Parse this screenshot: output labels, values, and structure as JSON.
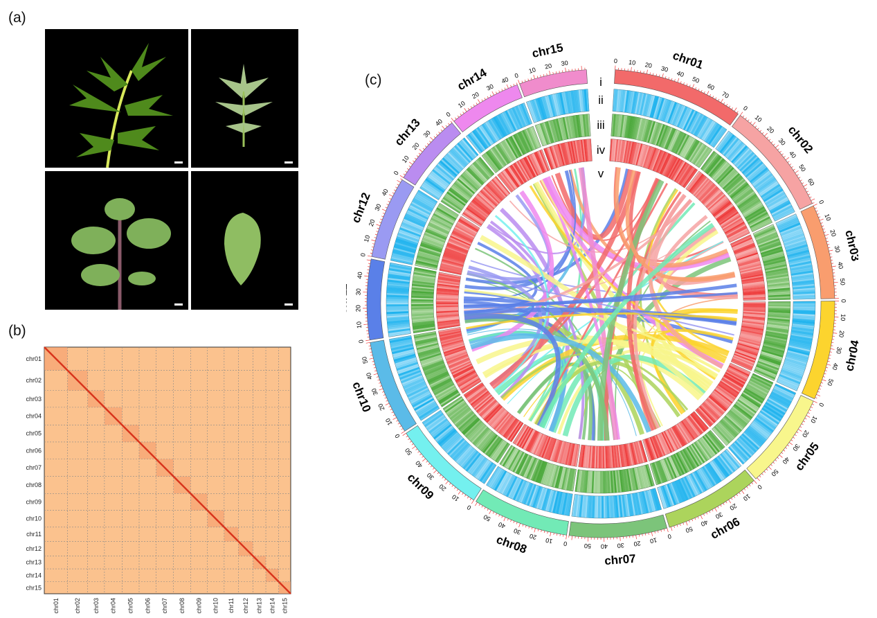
{
  "panels": {
    "a": "(a)",
    "b": "(b)",
    "c": "(c)"
  },
  "ring_labels": [
    "i",
    "ii",
    "iii",
    "iv",
    "v"
  ],
  "chromosomes": [
    {
      "name": "chr01",
      "length": 83,
      "color": "#f26a6a"
    },
    {
      "name": "chr02",
      "length": 72,
      "color": "#f6a3a3"
    },
    {
      "name": "chr03",
      "length": 60,
      "color": "#f99d6e"
    },
    {
      "name": "chr04",
      "length": 63,
      "color": "#fcd42e"
    },
    {
      "name": "chr05",
      "length": 61,
      "color": "#f8f68c"
    },
    {
      "name": "chr06",
      "length": 61,
      "color": "#acd45c"
    },
    {
      "name": "chr07",
      "length": 62,
      "color": "#7cc47a"
    },
    {
      "name": "chr08",
      "length": 61,
      "color": "#72eab6"
    },
    {
      "name": "chr09",
      "length": 60,
      "color": "#74f0ef"
    },
    {
      "name": "chr10",
      "length": 60,
      "color": "#5bbbe8"
    },
    {
      "name": "chr11",
      "length": 51,
      "color": "#5a80e8"
    },
    {
      "name": "chr12",
      "length": 52,
      "color": "#9a9af2"
    },
    {
      "name": "chr13",
      "length": 46,
      "color": "#ba8cf0"
    },
    {
      "name": "chr14",
      "length": 46,
      "color": "#ee88ee"
    },
    {
      "name": "chr15",
      "length": 43,
      "color": "#f08ccc"
    }
  ],
  "track_colors": {
    "ii": "#1fb3ee",
    "iii": "#4aa83a",
    "iv": "#ee3b3b"
  },
  "hic_colors": {
    "background": "#fbc28e",
    "diagonal": "#d8341c"
  }
}
